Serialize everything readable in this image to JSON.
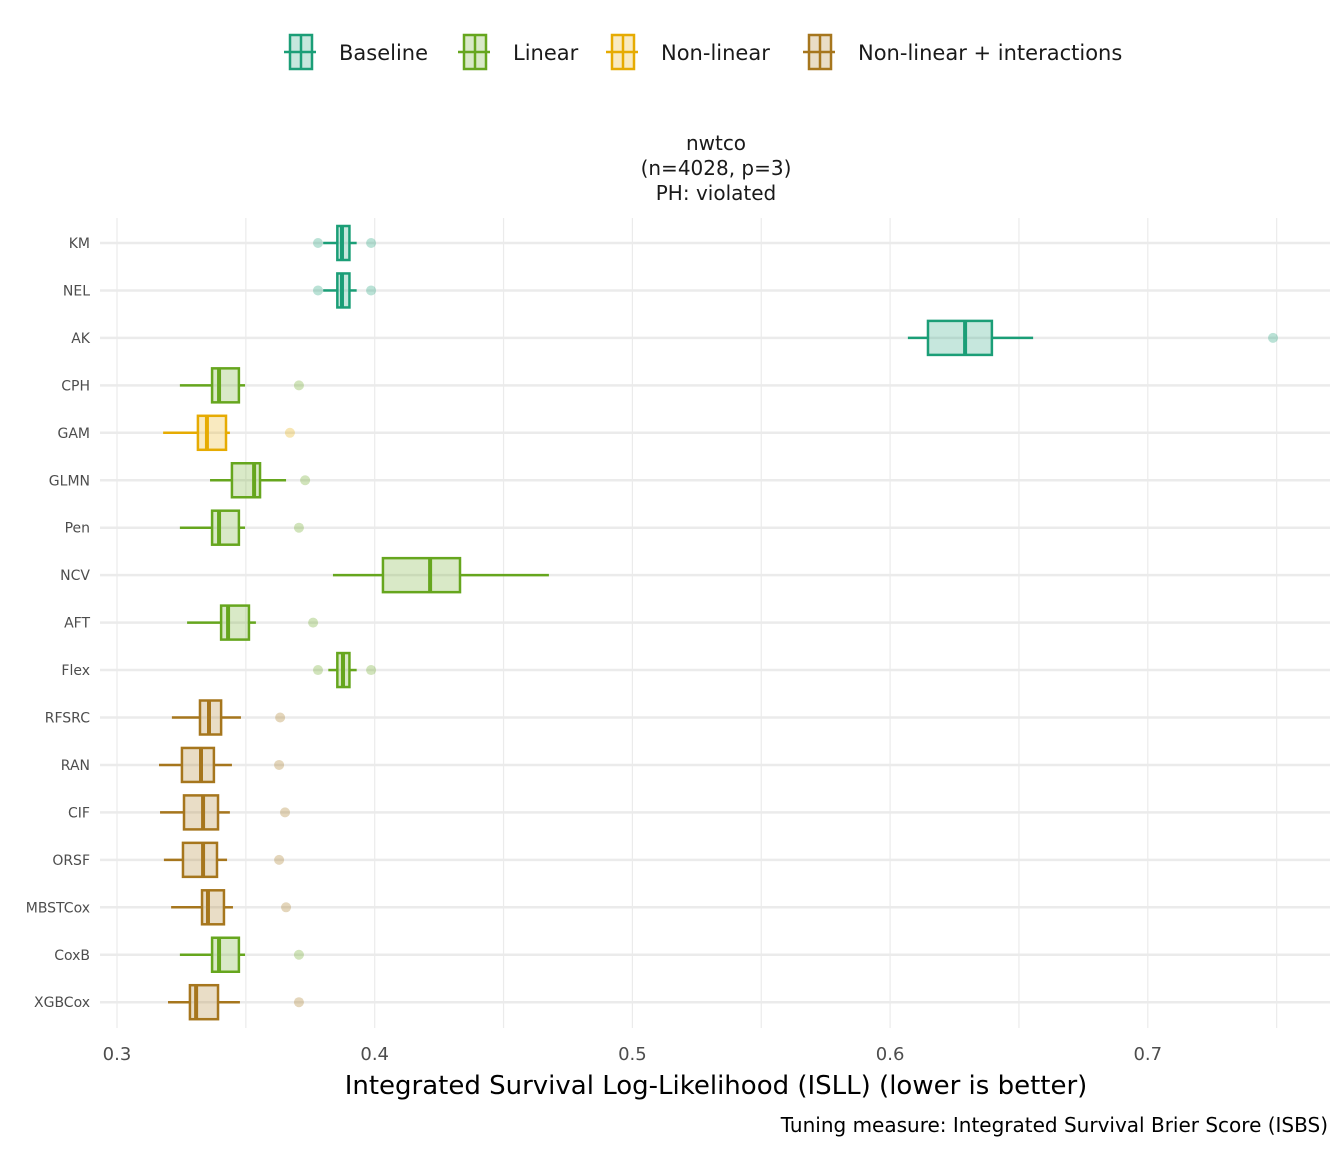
{
  "chart_data": {
    "type": "boxplot",
    "title": [
      "nwtco",
      "(n=4028, p=3)",
      "PH: violated"
    ],
    "xlabel": "Integrated Survival Log-Likelihood (ISLL) (lower is better)",
    "caption": "Tuning measure: Integrated Survival Brier Score (ISBS)",
    "xlim": [
      0.29,
      0.77
    ],
    "xticks": [
      0.3,
      0.4,
      0.5,
      0.6,
      0.7
    ],
    "xtick_labels": [
      "0.3",
      "0.4",
      "0.5",
      "0.6",
      "0.7"
    ],
    "grid": true,
    "legend_position": "top",
    "legend": [
      {
        "name": "Baseline",
        "color": "#1b9e77"
      },
      {
        "name": "Linear",
        "color": "#66a61e"
      },
      {
        "name": "Non-linear",
        "color": "#e6ab02"
      },
      {
        "name": "Non-linear + interactions",
        "color": "#a6761d"
      }
    ],
    "rows": [
      {
        "label": "KM",
        "group": 0,
        "wlo": 0.38,
        "q1": 0.3855,
        "med": 0.3873,
        "q3": 0.3902,
        "whi": 0.393,
        "outliers": [
          0.378,
          0.3986
        ]
      },
      {
        "label": "NEL",
        "group": 0,
        "wlo": 0.38,
        "q1": 0.3855,
        "med": 0.3873,
        "q3": 0.3902,
        "whi": 0.393,
        "outliers": [
          0.378,
          0.3986
        ]
      },
      {
        "label": "AK",
        "group": 0,
        "wlo": 0.6069,
        "q1": 0.6147,
        "med": 0.6291,
        "q3": 0.6395,
        "whi": 0.6555,
        "outliers": [
          0.7486
        ]
      },
      {
        "label": "CPH",
        "group": 1,
        "wlo": 0.3244,
        "q1": 0.3369,
        "med": 0.3396,
        "q3": 0.3473,
        "whi": 0.3497,
        "outliers": [
          0.3706
        ]
      },
      {
        "label": "GAM",
        "group": 2,
        "wlo": 0.3179,
        "q1": 0.3314,
        "med": 0.3349,
        "q3": 0.3423,
        "whi": 0.3438,
        "outliers": [
          0.3671
        ]
      },
      {
        "label": "GLMN",
        "group": 1,
        "wlo": 0.3361,
        "q1": 0.3446,
        "med": 0.3532,
        "q3": 0.3555,
        "whi": 0.3656,
        "outliers": [
          0.373
        ]
      },
      {
        "label": "Pen",
        "group": 1,
        "wlo": 0.3244,
        "q1": 0.3369,
        "med": 0.3396,
        "q3": 0.3473,
        "whi": 0.3497,
        "outliers": [
          0.3706
        ]
      },
      {
        "label": "NCV",
        "group": 1,
        "wlo": 0.3838,
        "q1": 0.4032,
        "med": 0.4215,
        "q3": 0.4331,
        "whi": 0.4676,
        "outliers": []
      },
      {
        "label": "AFT",
        "group": 1,
        "wlo": 0.3272,
        "q1": 0.3404,
        "med": 0.3431,
        "q3": 0.3512,
        "whi": 0.3539,
        "outliers": [
          0.3761
        ]
      },
      {
        "label": "Flex",
        "group": 1,
        "wlo": 0.382,
        "q1": 0.3855,
        "med": 0.3877,
        "q3": 0.3902,
        "whi": 0.393,
        "outliers": [
          0.378,
          0.3986
        ]
      },
      {
        "label": "RFSRC",
        "group": 3,
        "wlo": 0.3213,
        "q1": 0.3322,
        "med": 0.3357,
        "q3": 0.3404,
        "whi": 0.3481,
        "outliers": [
          0.3633
        ]
      },
      {
        "label": "RAN",
        "group": 3,
        "wlo": 0.3163,
        "q1": 0.3252,
        "med": 0.3326,
        "q3": 0.3376,
        "whi": 0.3446,
        "outliers": [
          0.3629
        ]
      },
      {
        "label": "CIF",
        "group": 3,
        "wlo": 0.3167,
        "q1": 0.326,
        "med": 0.3334,
        "q3": 0.3392,
        "whi": 0.3438,
        "outliers": [
          0.3652
        ]
      },
      {
        "label": "ORSF",
        "group": 3,
        "wlo": 0.3182,
        "q1": 0.3256,
        "med": 0.3334,
        "q3": 0.3388,
        "whi": 0.3427,
        "outliers": [
          0.3629
        ]
      },
      {
        "label": "MBSTCox",
        "group": 3,
        "wlo": 0.321,
        "q1": 0.333,
        "med": 0.3353,
        "q3": 0.3415,
        "whi": 0.345,
        "outliers": [
          0.3656
        ]
      },
      {
        "label": "CoxB",
        "group": 1,
        "wlo": 0.3244,
        "q1": 0.3369,
        "med": 0.3396,
        "q3": 0.3473,
        "whi": 0.3497,
        "outliers": [
          0.3706
        ]
      },
      {
        "label": "XGBCox",
        "group": 3,
        "wlo": 0.3198,
        "q1": 0.3283,
        "med": 0.3307,
        "q3": 0.3392,
        "whi": 0.3477,
        "outliers": [
          0.3706
        ]
      }
    ]
  }
}
